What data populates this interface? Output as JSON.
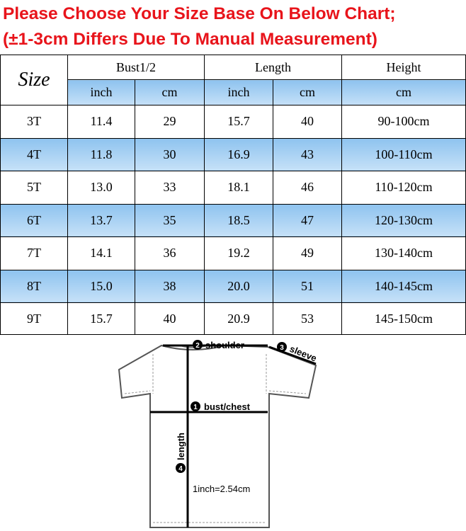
{
  "header": {
    "title_lines": [
      "Please Choose Your Size Base On Below Chart;",
      "(±1-3cm Differs Due To Manual Measurement)"
    ]
  },
  "table": {
    "size_label": "Size",
    "groups": [
      "Bust1/2",
      "Length",
      "Height"
    ],
    "units": [
      "inch",
      "cm",
      "inch",
      "cm",
      "cm"
    ],
    "rows": [
      [
        "3T",
        "11.4",
        "29",
        "15.7",
        "40",
        "90-100cm"
      ],
      [
        "4T",
        "11.8",
        "30",
        "16.9",
        "43",
        "100-110cm"
      ],
      [
        "5T",
        "13.0",
        "33",
        "18.1",
        "46",
        "110-120cm"
      ],
      [
        "6T",
        "13.7",
        "35",
        "18.5",
        "47",
        "120-130cm"
      ],
      [
        "7T",
        "14.1",
        "36",
        "19.2",
        "49",
        "130-140cm"
      ],
      [
        "8T",
        "15.0",
        "38",
        "20.0",
        "51",
        "140-145cm"
      ],
      [
        "9T",
        "15.7",
        "40",
        "20.9",
        "53",
        "145-150cm"
      ]
    ]
  },
  "diagram": {
    "labels": [
      {
        "number": "2",
        "text": "shoulder"
      },
      {
        "number": "3",
        "text": "sleeve"
      },
      {
        "number": "1",
        "text": "bust/chest"
      },
      {
        "number": "4",
        "text": "length"
      }
    ],
    "note": "1inch=2.54cm"
  }
}
